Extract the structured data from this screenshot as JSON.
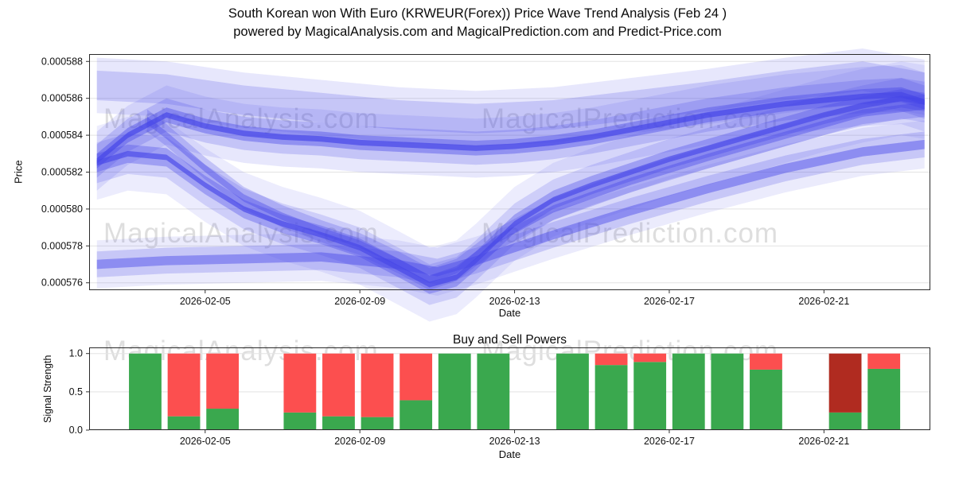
{
  "title": {
    "line1": "South Korean won With Euro (KRWEUR(Forex)) Price Wave Trend Analysis (Feb 24 )",
    "line2": "powered by MagicalAnalysis.com and MagicalPrediction.com and Predict-Price.com"
  },
  "watermarks": {
    "left": "MagicalAnalysis.com",
    "right": "MagicalPrediction.com"
  },
  "chart_data": [
    {
      "type": "area",
      "title": "",
      "xlabel": "Date",
      "ylabel": "Price",
      "xlim": [
        2.0,
        23.75
      ],
      "ylim_e7": [
        5756,
        5884
      ],
      "unit_note": "y values are price in 1e-7 units (5830 = 0.000583)",
      "band_color": "#4747e8",
      "y_ticks": [
        {
          "v": 5880,
          "label": "0.000588"
        },
        {
          "v": 5860,
          "label": "0.000586"
        },
        {
          "v": 5840,
          "label": "0.000584"
        },
        {
          "v": 5820,
          "label": "0.000582"
        },
        {
          "v": 5800,
          "label": "0.000580"
        },
        {
          "v": 5780,
          "label": "0.000578"
        },
        {
          "v": 5760,
          "label": "0.000576"
        }
      ],
      "x_ticks": [
        {
          "v": 5,
          "label": "2026-02-05"
        },
        {
          "v": 9,
          "label": "2026-02-09"
        },
        {
          "v": 13,
          "label": "2026-02-13"
        },
        {
          "v": 17,
          "label": "2026-02-17"
        },
        {
          "v": 21,
          "label": "2026-02-21"
        }
      ],
      "trends": [
        {
          "name": "main-flat-trend",
          "x": [
            2.2,
            3,
            4,
            5,
            6,
            7,
            8,
            9,
            10,
            11,
            12,
            13,
            14,
            15,
            16,
            17,
            18,
            19,
            20,
            21,
            22,
            23,
            23.6
          ],
          "y": [
            5826,
            5840,
            5851,
            5845,
            5841,
            5839,
            5838,
            5836,
            5835,
            5834,
            5833,
            5834,
            5836,
            5839,
            5843,
            5847,
            5851,
            5854,
            5857,
            5859,
            5861,
            5862,
            5858
          ],
          "bands": [
            {
              "w": 1.5,
              "a": 0.7
            },
            {
              "w": 4,
              "a": 0.4
            },
            {
              "w": 9,
              "a": 0.22
            },
            {
              "w": 16,
              "a": 0.13
            }
          ]
        },
        {
          "name": "v-dip-trend",
          "x": [
            2.2,
            3,
            4,
            5,
            6,
            7,
            8,
            9,
            10,
            10.8,
            11.5,
            12,
            13,
            14,
            15,
            16,
            17,
            18,
            19,
            20,
            21,
            22,
            23,
            23.6
          ],
          "y": [
            5825,
            5830,
            5828,
            5813,
            5800,
            5792,
            5786,
            5779,
            5768,
            5759,
            5763,
            5772,
            5792,
            5805,
            5813,
            5820,
            5827,
            5833,
            5839,
            5845,
            5851,
            5856,
            5860,
            5858
          ],
          "bands": [
            {
              "w": 1.5,
              "a": 0.65
            },
            {
              "w": 5,
              "a": 0.35
            },
            {
              "w": 11,
              "a": 0.18
            },
            {
              "w": 20,
              "a": 0.1
            }
          ]
        },
        {
          "name": "lower-gradual-trend",
          "x": [
            2.2,
            4,
            6,
            8,
            10,
            11,
            12,
            14,
            16,
            18,
            20,
            22,
            23.6
          ],
          "y": [
            5770,
            5772,
            5773,
            5774,
            5770,
            5766,
            5772,
            5786,
            5799,
            5811,
            5822,
            5831,
            5835
          ],
          "bands": [
            {
              "w": 2.5,
              "a": 0.45
            },
            {
              "w": 7,
              "a": 0.22
            },
            {
              "w": 13,
              "a": 0.11
            }
          ]
        },
        {
          "name": "mid-descending-trend",
          "x": [
            3.5,
            4,
            5,
            6,
            7,
            8,
            9,
            10,
            10.8,
            11.5,
            12.5,
            14,
            16,
            18,
            20,
            22,
            23.6
          ],
          "y": [
            5848,
            5840,
            5822,
            5806,
            5796,
            5788,
            5781,
            5771,
            5762,
            5767,
            5783,
            5800,
            5815,
            5828,
            5840,
            5852,
            5856
          ],
          "bands": [
            {
              "w": 2,
              "a": 0.4
            },
            {
              "w": 6,
              "a": 0.25
            }
          ]
        },
        {
          "name": "upper-envelope",
          "x": [
            2.2,
            4,
            6,
            8,
            10,
            12,
            14,
            16,
            18,
            20,
            22,
            23.6
          ],
          "y": [
            5867,
            5865,
            5859,
            5855,
            5851,
            5849,
            5851,
            5856,
            5861,
            5867,
            5872,
            5866
          ],
          "bands": [
            {
              "w": 8,
              "a": 0.2
            },
            {
              "w": 15,
              "a": 0.13
            }
          ]
        }
      ]
    },
    {
      "type": "bar",
      "title": "Buy and Sell Powers",
      "xlabel": "Date",
      "ylabel": "Signal Strength",
      "xlim": [
        2.0,
        23.75
      ],
      "ylim": [
        0,
        1.08
      ],
      "bar_width_days": 0.84,
      "colors": {
        "buy": "#3aa84e",
        "sell": "#fc4f4f",
        "sell_dark": "#b02b20"
      },
      "y_ticks": [
        {
          "v": 0,
          "label": "0.0"
        },
        {
          "v": 0.5,
          "label": "0.5"
        },
        {
          "v": 1,
          "label": "1.0"
        }
      ],
      "x_ticks": [
        {
          "v": 5,
          "label": "2026-02-05"
        },
        {
          "v": 9,
          "label": "2026-02-09"
        },
        {
          "v": 13,
          "label": "2026-02-13"
        },
        {
          "v": 17,
          "label": "2026-02-17"
        },
        {
          "v": 21,
          "label": "2026-02-21"
        }
      ],
      "bars": [
        {
          "d": 3.45,
          "buy": 1.0,
          "sell": 0.0,
          "variant": "normal"
        },
        {
          "d": 4.45,
          "buy": 0.18,
          "sell": 0.82,
          "variant": "normal"
        },
        {
          "d": 5.45,
          "buy": 0.28,
          "sell": 0.72,
          "variant": "normal"
        },
        {
          "d": 7.45,
          "buy": 0.23,
          "sell": 0.77,
          "variant": "normal"
        },
        {
          "d": 8.45,
          "buy": 0.18,
          "sell": 0.82,
          "variant": "normal"
        },
        {
          "d": 9.45,
          "buy": 0.17,
          "sell": 0.83,
          "variant": "normal"
        },
        {
          "d": 10.45,
          "buy": 0.39,
          "sell": 0.61,
          "variant": "normal"
        },
        {
          "d": 11.45,
          "buy": 1.0,
          "sell": 0.0,
          "variant": "normal"
        },
        {
          "d": 12.45,
          "buy": 1.0,
          "sell": 0.0,
          "variant": "normal"
        },
        {
          "d": 14.5,
          "buy": 1.0,
          "sell": 0.0,
          "variant": "normal"
        },
        {
          "d": 15.5,
          "buy": 0.85,
          "sell": 0.15,
          "variant": "normal"
        },
        {
          "d": 16.5,
          "buy": 0.89,
          "sell": 0.11,
          "variant": "normal"
        },
        {
          "d": 17.5,
          "buy": 1.0,
          "sell": 0.0,
          "variant": "normal"
        },
        {
          "d": 18.5,
          "buy": 1.0,
          "sell": 0.0,
          "variant": "normal"
        },
        {
          "d": 19.5,
          "buy": 0.79,
          "sell": 0.21,
          "variant": "normal"
        },
        {
          "d": 21.55,
          "buy": 0.23,
          "sell": 0.77,
          "variant": "dark"
        },
        {
          "d": 22.55,
          "buy": 0.8,
          "sell": 0.2,
          "variant": "normal"
        }
      ]
    }
  ]
}
